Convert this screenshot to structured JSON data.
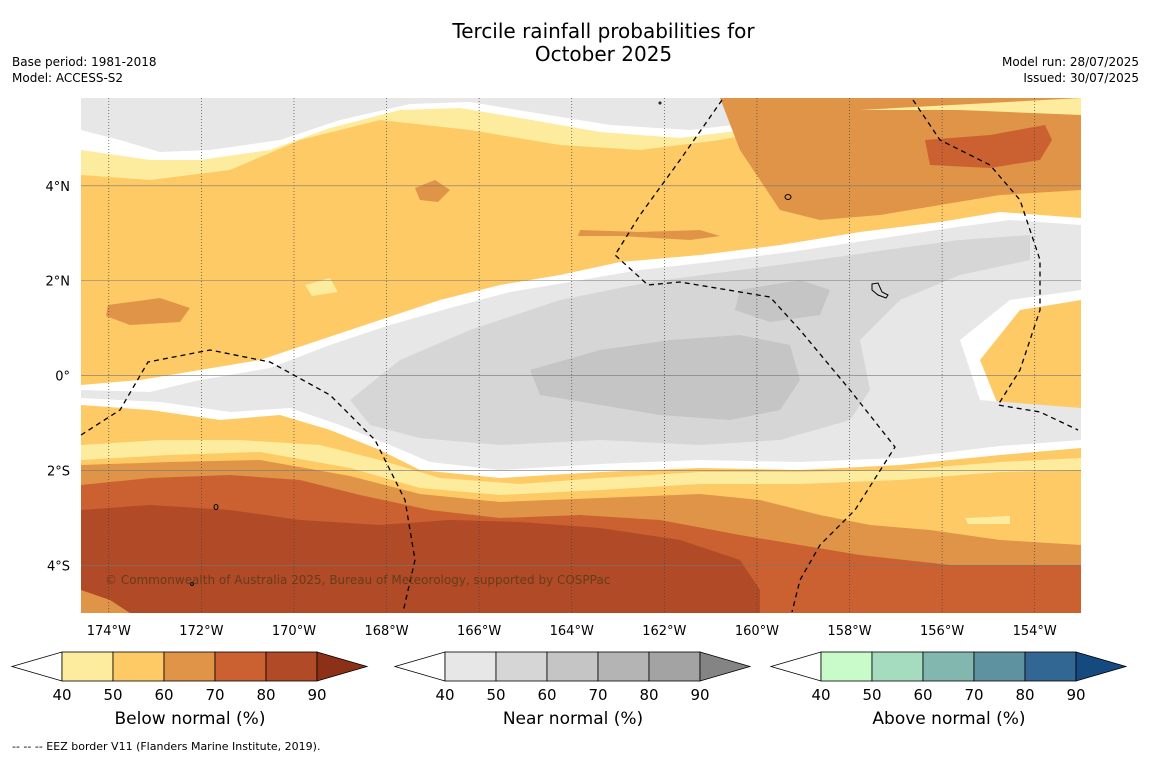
{
  "title_line1": "Tercile rainfall probabilities for",
  "title_line2": "October 2025",
  "meta_left": [
    "Base period: 1981-2018",
    "Model: ACCESS-S2"
  ],
  "meta_right": [
    "Model run: 28/07/2025",
    "Issued: 30/07/2025"
  ],
  "copyright": "© Commonwealth of Australia 2025, Bureau of Meteorology, supported by COSPPac",
  "map": {
    "lon_range": [
      -174.6,
      -153.0
    ],
    "lat_range": [
      -5.0,
      5.85
    ],
    "lon_ticks": [
      {
        "value": -174,
        "label": "174°W"
      },
      {
        "value": -172,
        "label": "172°W"
      },
      {
        "value": -170,
        "label": "170°W"
      },
      {
        "value": -168,
        "label": "168°W"
      },
      {
        "value": -166,
        "label": "166°W"
      },
      {
        "value": -164,
        "label": "164°W"
      },
      {
        "value": -162,
        "label": "162°W"
      },
      {
        "value": -160,
        "label": "160°W"
      },
      {
        "value": -158,
        "label": "158°W"
      },
      {
        "value": -156,
        "label": "156°W"
      },
      {
        "value": -154,
        "label": "154°W"
      }
    ],
    "lat_ticks": [
      {
        "value": 4,
        "label": "4°N"
      },
      {
        "value": 2,
        "label": "2°N"
      },
      {
        "value": 0,
        "label": "0°"
      },
      {
        "value": -2,
        "label": "2°S"
      },
      {
        "value": -4,
        "label": "4°S"
      }
    ]
  },
  "colors": {
    "below": [
      "#fdeb9e",
      "#fdca66",
      "#e09447",
      "#cb6131",
      "#b04a27",
      "#8c3118"
    ],
    "near": [
      "#e7e7e7",
      "#d6d6d6",
      "#c5c5c5",
      "#b4b4b4",
      "#a3a3a3",
      "#848484"
    ],
    "above": [
      "#c9fac9",
      "#a5dbbf",
      "#82b7b0",
      "#5f92a1",
      "#326794",
      "#144a80"
    ]
  },
  "colorbars": [
    {
      "name": "below",
      "label": "Below normal (%)",
      "ticks": [
        "40",
        "50",
        "60",
        "70",
        "80",
        "90"
      ]
    },
    {
      "name": "near",
      "label": "Near normal (%)",
      "ticks": [
        "40",
        "50",
        "60",
        "70",
        "80",
        "90"
      ]
    },
    {
      "name": "above",
      "label": "Above normal (%)",
      "ticks": [
        "40",
        "50",
        "60",
        "70",
        "80",
        "90"
      ]
    }
  ],
  "footnote": "--  --  -- EEZ border V11 (Flanders Marine Institute, 2019)."
}
